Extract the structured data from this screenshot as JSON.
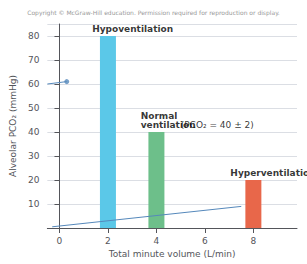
{
  "chart_data": {
    "type": "bar",
    "subtitle": "Copyright © McGraw-Hill education. Permission required for reproduction or display.",
    "xlabel": "Total minute volume (L/min)",
    "ylabel": "Alveolar PCO₂ (mmHg)",
    "xlim": [
      -0.5,
      9.8
    ],
    "xticks": [
      0,
      2,
      4,
      6,
      8
    ],
    "ylim": [
      0,
      85
    ],
    "yticks": [
      10,
      20,
      30,
      40,
      50,
      60,
      70,
      80
    ],
    "grid": true,
    "series": [
      {
        "type": "bar",
        "x": [
          2,
          4,
          8
        ],
        "values": [
          80,
          40,
          20
        ],
        "colors": [
          "#5BC8E8",
          "#6DBF8A",
          "#E8674A"
        ]
      },
      {
        "type": "line",
        "x": [
          -0.3,
          7.5
        ],
        "values": [
          0.5,
          9
        ],
        "color": "#5588BB"
      },
      {
        "type": "line",
        "x": [
          -0.5,
          0.3
        ],
        "values": [
          60,
          61
        ],
        "color": "#5588BB"
      },
      {
        "type": "scatter",
        "x": [
          0.3
        ],
        "values": [
          61
        ],
        "color": "#5588BB",
        "marker": "circle"
      }
    ],
    "annotations": [
      {
        "text": "Hypoventilation",
        "x": 1.35,
        "y": 81
      },
      {
        "text": "Normal\nventilation",
        "x": 3.35,
        "y": 41
      },
      {
        "text": "Hyperventilation",
        "x": 7.05,
        "y": 21
      },
      {
        "text": "(PCO₂ = 40 ± 2)",
        "x": 5.0,
        "y": 41
      }
    ]
  }
}
